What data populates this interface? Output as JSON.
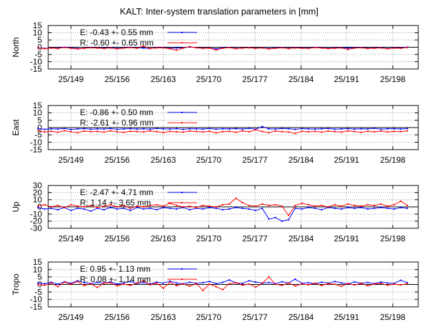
{
  "page": {
    "title": "KALT: Inter-system translation parameters in [mm]"
  },
  "colors": {
    "E": "#0000ff",
    "R": "#ff0000",
    "axis": "#000000",
    "grid": "#999999"
  },
  "chart_data": [
    {
      "type": "line",
      "ylabel": "North",
      "ylim": [
        -15,
        15
      ],
      "yticks": [
        15,
        10,
        5,
        0,
        -5,
        -10,
        -15
      ],
      "xticks": [
        "25/149",
        "25/156",
        "25/163",
        "25/170",
        "25/177",
        "25/184",
        "25/191",
        "25/198"
      ],
      "legend": [
        {
          "key": "E",
          "text": "E:  -0.43 +- 0.55 mm"
        },
        {
          "key": "R",
          "text": "R:  -0.60 +- 0.65 mm"
        }
      ],
      "series": [
        {
          "key": "E",
          "values": [
            -0.3,
            -0.8,
            -0.5,
            -0.6,
            0.1,
            -0.4,
            -0.9,
            -0.7,
            -0.2,
            -0.5,
            -0.6,
            -0.3,
            -0.8,
            -0.4,
            -0.1,
            -0.5,
            -0.6,
            -0.9,
            -0.3,
            -0.2,
            -0.7,
            -0.5,
            -0.4,
            0.2,
            -0.3,
            -0.6,
            -0.5,
            -1.1,
            -0.4,
            -0.2,
            -0.8,
            -0.5,
            -0.3,
            -0.6,
            -0.4,
            -0.9,
            -0.5,
            -0.2,
            -0.7,
            -0.3,
            -0.5,
            -0.6,
            -0.1,
            -0.4,
            -0.8,
            -0.5,
            -0.3,
            -0.6,
            -0.4,
            -0.2,
            -0.7,
            -0.5,
            -0.3,
            -0.9,
            -0.4,
            -0.5,
            0.1
          ]
        },
        {
          "key": "R",
          "values": [
            -0.5,
            -1.0,
            -0.6,
            -0.9,
            -0.2,
            -0.7,
            -1.2,
            -0.8,
            -0.4,
            -0.6,
            -0.9,
            -0.5,
            -1.1,
            -0.6,
            -0.3,
            -0.7,
            0.8,
            -0.9,
            -0.5,
            -0.4,
            -1.0,
            -2.0,
            -0.6,
            0.5,
            -0.4,
            -0.8,
            -0.6,
            -1.9,
            -0.7,
            -0.3,
            -1.0,
            -0.6,
            -0.4,
            -0.8,
            -0.5,
            -1.2,
            -0.7,
            -0.4,
            -0.9,
            -0.5,
            -0.7,
            -0.8,
            -0.3,
            -0.6,
            -1.0,
            -0.7,
            -0.5,
            -1.5,
            -0.6,
            -0.4,
            -0.9,
            -0.7,
            -0.5,
            -1.1,
            -0.6,
            -0.7,
            -0.2
          ]
        }
      ]
    },
    {
      "type": "line",
      "ylabel": "East",
      "ylim": [
        -15,
        15
      ],
      "yticks": [
        15,
        10,
        5,
        0,
        -5,
        -10,
        -15
      ],
      "xticks": [
        "25/149",
        "25/156",
        "25/163",
        "25/170",
        "25/177",
        "25/184",
        "25/191",
        "25/198"
      ],
      "legend": [
        {
          "key": "E",
          "text": "E:  -0.86 +- 0.50 mm"
        },
        {
          "key": "R",
          "text": "R:  -2.61 +- 0.96 mm"
        }
      ],
      "series": [
        {
          "key": "E",
          "values": [
            -0.5,
            -1.2,
            -0.8,
            -1.0,
            -0.6,
            -1.3,
            -0.9,
            -0.7,
            -1.1,
            -0.8,
            -1.0,
            -0.6,
            -1.2,
            -0.9,
            -0.7,
            -1.0,
            -0.8,
            -1.1,
            -0.6,
            -0.9,
            -1.0,
            -0.7,
            -1.2,
            -0.8,
            -0.9,
            -1.0,
            -0.6,
            -1.1,
            -0.8,
            -0.9,
            -0.7,
            -1.0,
            -0.5,
            -1.1,
            0.7,
            -0.9,
            -1.0,
            -0.6,
            -0.8,
            -1.2,
            -0.7,
            -0.9,
            -1.0,
            -0.8,
            -0.6,
            -1.1,
            -0.9,
            -0.7,
            -1.0,
            -0.8,
            -0.9,
            -0.5,
            -1.1,
            -0.8,
            -0.7,
            -1.0,
            -0.6
          ]
        },
        {
          "key": "R",
          "values": [
            -2.0,
            -3.0,
            -2.5,
            -3.2,
            -2.1,
            -2.9,
            -3.5,
            -2.4,
            -2.8,
            -2.6,
            -3.1,
            -2.2,
            -2.9,
            -3.3,
            -2.5,
            -2.7,
            -3.0,
            -2.3,
            -2.8,
            -3.4,
            -2.6,
            -2.9,
            -3.1,
            -2.4,
            -2.7,
            -3.0,
            -2.5,
            -3.6,
            -2.8,
            -2.6,
            -3.2,
            -2.3,
            -2.9,
            -1.5,
            -2.7,
            -3.5,
            -2.4,
            -2.8,
            -3.0,
            -4.0,
            -2.5,
            -2.9,
            -2.6,
            -3.1,
            -2.4,
            -2.8,
            -3.0,
            -2.3,
            -2.7,
            -3.2,
            -2.5,
            -2.9,
            -2.4,
            -3.0,
            -2.6,
            -2.8,
            -2.2
          ]
        }
      ]
    },
    {
      "type": "line",
      "ylabel": "Up",
      "ylim": [
        -30,
        30
      ],
      "yticks": [
        30,
        20,
        10,
        0,
        -10,
        -20,
        -30
      ],
      "xticks": [
        "25/149",
        "25/156",
        "25/163",
        "25/170",
        "25/177",
        "25/184",
        "25/191",
        "25/198"
      ],
      "legend": [
        {
          "key": "E",
          "text": "E:  -2.47 +- 4.71 mm"
        },
        {
          "key": "R",
          "text": "R:   1.14 +- 3.65 mm"
        }
      ],
      "series": [
        {
          "key": "E",
          "values": [
            -1,
            -3,
            -2,
            -4,
            -1,
            -5,
            -2,
            -3,
            -6,
            -2,
            -4,
            -1,
            -3,
            -2,
            -5,
            -1,
            -3,
            -2,
            -4,
            -1,
            -2,
            -3,
            -1,
            -4,
            -2,
            -3,
            -1,
            -2,
            -4,
            -3,
            -1,
            -2,
            -3,
            -5,
            -2,
            -17,
            -15,
            -20,
            -18,
            -2,
            -3,
            -1,
            -2,
            -4,
            -1,
            -2,
            -3,
            -1,
            -2,
            -1,
            -3,
            -2,
            -1,
            -2,
            -3,
            -1,
            -2
          ]
        },
        {
          "key": "R",
          "values": [
            1,
            3,
            0,
            2,
            -1,
            3,
            1,
            0,
            2,
            -1,
            1,
            3,
            0,
            2,
            -2,
            1,
            0,
            2,
            3,
            1,
            5,
            2,
            0,
            1,
            -1,
            2,
            1,
            0,
            3,
            4,
            12,
            6,
            2,
            1,
            4,
            2,
            3,
            1,
            -12,
            2,
            5,
            3,
            1,
            2,
            0,
            3,
            1,
            4,
            2,
            1,
            3,
            2,
            4,
            1,
            3,
            8,
            2
          ]
        }
      ]
    },
    {
      "type": "line",
      "ylabel": "Tropo",
      "ylim": [
        -15,
        15
      ],
      "yticks": [
        15,
        10,
        5,
        0,
        -5,
        -10,
        -15
      ],
      "xticks": [
        "25/149",
        "25/156",
        "25/163",
        "25/170",
        "25/177",
        "25/184",
        "25/191",
        "25/198"
      ],
      "legend": [
        {
          "key": "E",
          "text": "E:   0.95 +- 1.13 mm"
        },
        {
          "key": "R",
          "text": "R:   0.08 +- 1.14 mm"
        }
      ],
      "series": [
        {
          "key": "E",
          "values": [
            1.0,
            0.5,
            1.5,
            0.2,
            1.8,
            0.8,
            2.5,
            1.2,
            0.6,
            1.4,
            0.9,
            1.7,
            0.3,
            1.1,
            2.0,
            0.7,
            1.3,
            0.4,
            1.6,
            0.9,
            2.2,
            1.0,
            0.5,
            1.5,
            0.8,
            1.2,
            2.0,
            0.6,
            1.4,
            3.0,
            1.1,
            0.7,
            2.5,
            1.6,
            0.9,
            1.3,
            0.5,
            1.8,
            1.0,
            3.5,
            0.8,
            1.2,
            0.6,
            1.5,
            0.9,
            2.0,
            1.1,
            0.4,
            1.7,
            0.8,
            1.3,
            0.6,
            1.6,
            1.0,
            0.7,
            2.8,
            1.2
          ]
        },
        {
          "key": "R",
          "values": [
            0.0,
            -0.5,
            1.0,
            -1.5,
            1.5,
            0.2,
            2.0,
            -0.8,
            0.5,
            -2.0,
            0.8,
            1.2,
            -1.0,
            0.3,
            -0.6,
            0.9,
            2.5,
            -0.3,
            1.0,
            -2.5,
            1.5,
            -0.8,
            0.4,
            -1.2,
            0.6,
            -4.0,
            0.2,
            -1.5,
            -3.5,
            0.5,
            1.2,
            -0.5,
            0.3,
            -1.8,
            0.7,
            5.0,
            0.2,
            -0.6,
            1.0,
            -1.0,
            0.4,
            -0.3,
            0.9,
            -0.7,
            0.5,
            0.2,
            -1.3,
            0.6,
            -0.4,
            0.8,
            -0.9,
            0.3,
            0.7,
            -0.5,
            0.2,
            -0.3,
            0.5
          ]
        }
      ]
    }
  ]
}
